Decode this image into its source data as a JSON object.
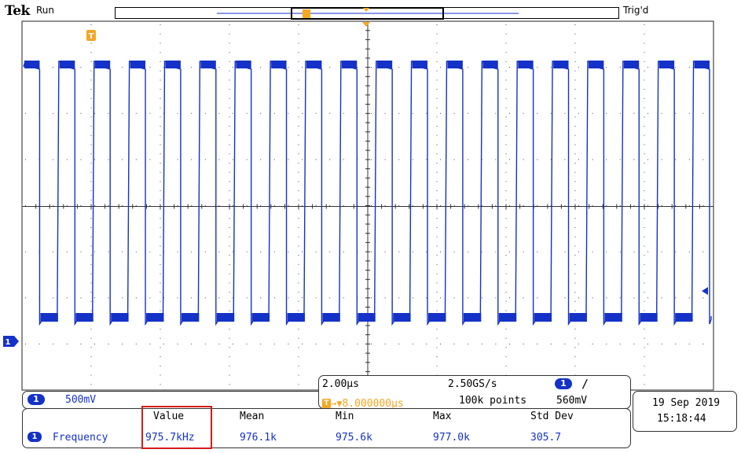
{
  "header": {
    "brand": "Tek",
    "acq_state": "Run",
    "trigger_state": "Trig'd"
  },
  "waveform": {
    "channel": "1",
    "color": "#1432c8",
    "periods_shown": 19.5,
    "signal_type": "square"
  },
  "channel_panel": {
    "channel_label": "1",
    "scale": "500mV"
  },
  "timebase_panel": {
    "horizontal_scale": "2.00μs",
    "trigger_position": "8.000000μs",
    "sample_rate": "2.50GS/s",
    "record_length": "100k points",
    "trigger_channel": "1",
    "trigger_slope_glyph": "∕",
    "trigger_level": "560mV"
  },
  "measurements": {
    "headers": [
      "Value",
      "Mean",
      "Min",
      "Max",
      "Std Dev"
    ],
    "source": "1",
    "name": "Frequency",
    "values": [
      "975.7kHz",
      "976.1k",
      "975.6k",
      "977.0k",
      "305.7"
    ]
  },
  "datetime": {
    "date": "19 Sep 2019",
    "time": "15:18:44"
  },
  "colors": {
    "channel1": "#1432c8",
    "trigger": "#f5a623",
    "highlight": "#d81b1b"
  }
}
